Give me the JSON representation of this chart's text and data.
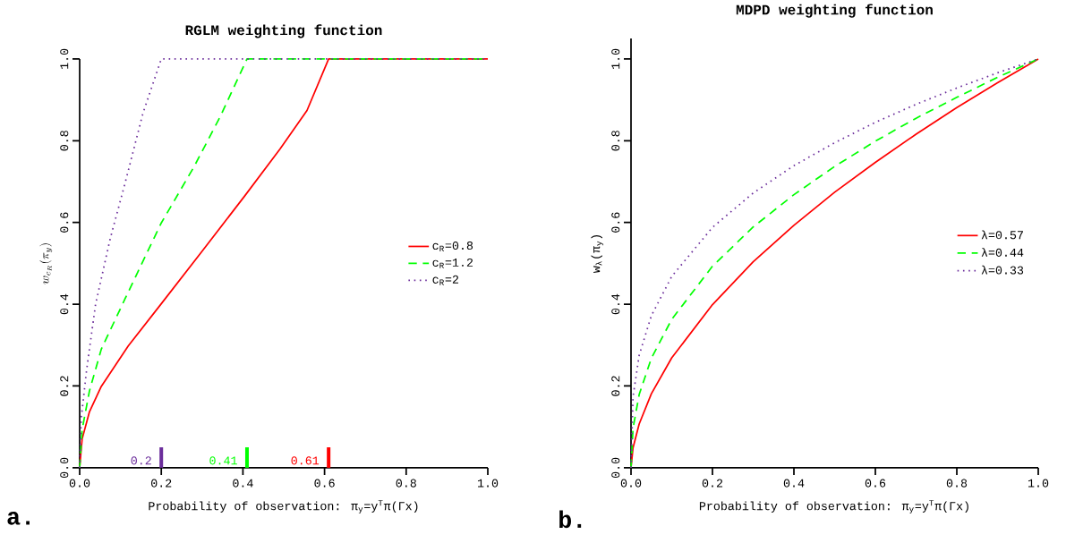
{
  "chart_data": [
    {
      "type": "line",
      "title": "RGLM weighting function",
      "xlabel": "Probability of observation: π$_{y}$=y$^{T}$π(Γx)",
      "ylabel": "w_{c_R}(\\pi_y)",
      "xlim": [
        0,
        1
      ],
      "ylim": [
        0,
        1
      ],
      "xticks": [
        {
          "value": 0,
          "label": "0.0"
        },
        {
          "value": 0.2,
          "label": "0.2"
        },
        {
          "value": 0.4,
          "label": "0.4"
        },
        {
          "value": 0.6,
          "label": "0.6"
        },
        {
          "value": 0.8,
          "label": "0.8"
        },
        {
          "value": 1,
          "label": "1.0"
        }
      ],
      "yticks": [
        {
          "value": 0,
          "label": "0.0"
        },
        {
          "value": 0.2,
          "label": "0.2"
        },
        {
          "value": 0.4,
          "label": "0.4"
        },
        {
          "value": 0.6,
          "label": "0.6"
        },
        {
          "value": 0.8,
          "label": "0.8"
        },
        {
          "value": 1,
          "label": "1.0"
        }
      ],
      "legend": "right",
      "grid": false,
      "series": [
        {
          "name": "c$_{R}$=0.8",
          "color": "#ff0000",
          "line_style": "solid",
          "x": [
            0,
            0.006,
            0.024,
            0.053,
            0.119,
            0.199,
            0.301,
            0.403,
            0.491,
            0.557,
            0.61,
            1.0
          ],
          "values": [
            0,
            0.07,
            0.137,
            0.199,
            0.298,
            0.4,
            0.531,
            0.663,
            0.78,
            0.874,
            1.0,
            1.0
          ]
        },
        {
          "name": "c$_{R}$=1.2",
          "color": "#00ff00",
          "line_style": "dashed",
          "x": [
            0,
            0.006,
            0.024,
            0.053,
            0.112,
            0.199,
            0.28,
            0.345,
            0.41,
            1.0
          ],
          "values": [
            0,
            0.093,
            0.188,
            0.29,
            0.415,
            0.597,
            0.736,
            0.86,
            1.0,
            1.0
          ]
        },
        {
          "name": "c$_{R}$=2",
          "color": "#6b2d9b",
          "line_style": "dotted",
          "x": [
            0,
            0.004,
            0.017,
            0.039,
            0.075,
            0.112,
            0.155,
            0.2,
            1.0
          ],
          "values": [
            0,
            0.123,
            0.239,
            0.4,
            0.561,
            0.699,
            0.867,
            1.0,
            1.0
          ]
        }
      ],
      "ref_lines": [
        {
          "axis": "x",
          "value": 0.2,
          "label": "0.2",
          "color": "#6b2d9b"
        },
        {
          "axis": "x",
          "value": 0.41,
          "label": "0.41",
          "color": "#00ff00"
        },
        {
          "axis": "x",
          "value": 0.61,
          "label": "0.61",
          "color": "#ff0000"
        }
      ],
      "annotations": [
        "a."
      ]
    },
    {
      "type": "line",
      "title": "MDPD weighting function",
      "xlabel": "Probability of observation: π$_{y}$=y$^{T}$π(Γx)",
      "ylabel": "w$_{λ}$(π$_{y}$)",
      "xlim": [
        0,
        1
      ],
      "ylim": [
        0,
        1.05
      ],
      "xticks": [
        {
          "value": 0,
          "label": "0.0"
        },
        {
          "value": 0.2,
          "label": "0.2"
        },
        {
          "value": 0.4,
          "label": "0.4"
        },
        {
          "value": 0.6,
          "label": "0.6"
        },
        {
          "value": 0.8,
          "label": "0.8"
        },
        {
          "value": 1,
          "label": "1.0"
        }
      ],
      "yticks": [
        {
          "value": 0,
          "label": "0.0"
        },
        {
          "value": 0.2,
          "label": "0.2"
        },
        {
          "value": 0.4,
          "label": "0.4"
        },
        {
          "value": 0.6,
          "label": "0.6"
        },
        {
          "value": 0.8,
          "label": "0.8"
        },
        {
          "value": 1,
          "label": "1.0"
        }
      ],
      "legend": "right",
      "grid": false,
      "series": [
        {
          "name": "λ=0.57",
          "color": "#ff0000",
          "line_style": "solid",
          "x": [
            0,
            0.005,
            0.02,
            0.05,
            0.1,
            0.2,
            0.3,
            0.4,
            0.5,
            0.6,
            0.7,
            0.8,
            0.9,
            1.0
          ],
          "values": [
            0,
            0.049,
            0.107,
            0.181,
            0.269,
            0.399,
            0.504,
            0.593,
            0.674,
            0.747,
            0.816,
            0.881,
            0.942,
            1.0
          ]
        },
        {
          "name": "λ=0.44",
          "color": "#00ff00",
          "line_style": "dashed",
          "x": [
            0,
            0.005,
            0.02,
            0.05,
            0.1,
            0.2,
            0.3,
            0.4,
            0.5,
            0.6,
            0.7,
            0.8,
            0.9,
            1.0
          ],
          "values": [
            0,
            0.097,
            0.179,
            0.268,
            0.363,
            0.493,
            0.589,
            0.668,
            0.737,
            0.799,
            0.855,
            0.906,
            0.955,
            1.0
          ]
        },
        {
          "name": "λ=0.33",
          "color": "#6b2d9b",
          "line_style": "dotted",
          "x": [
            0,
            0.005,
            0.02,
            0.05,
            0.1,
            0.2,
            0.3,
            0.4,
            0.5,
            0.6,
            0.7,
            0.8,
            0.9,
            1.0
          ],
          "values": [
            0,
            0.174,
            0.275,
            0.372,
            0.468,
            0.588,
            0.672,
            0.739,
            0.795,
            0.845,
            0.889,
            0.929,
            0.966,
            1.0
          ]
        }
      ],
      "annotations": [
        "b."
      ]
    }
  ]
}
